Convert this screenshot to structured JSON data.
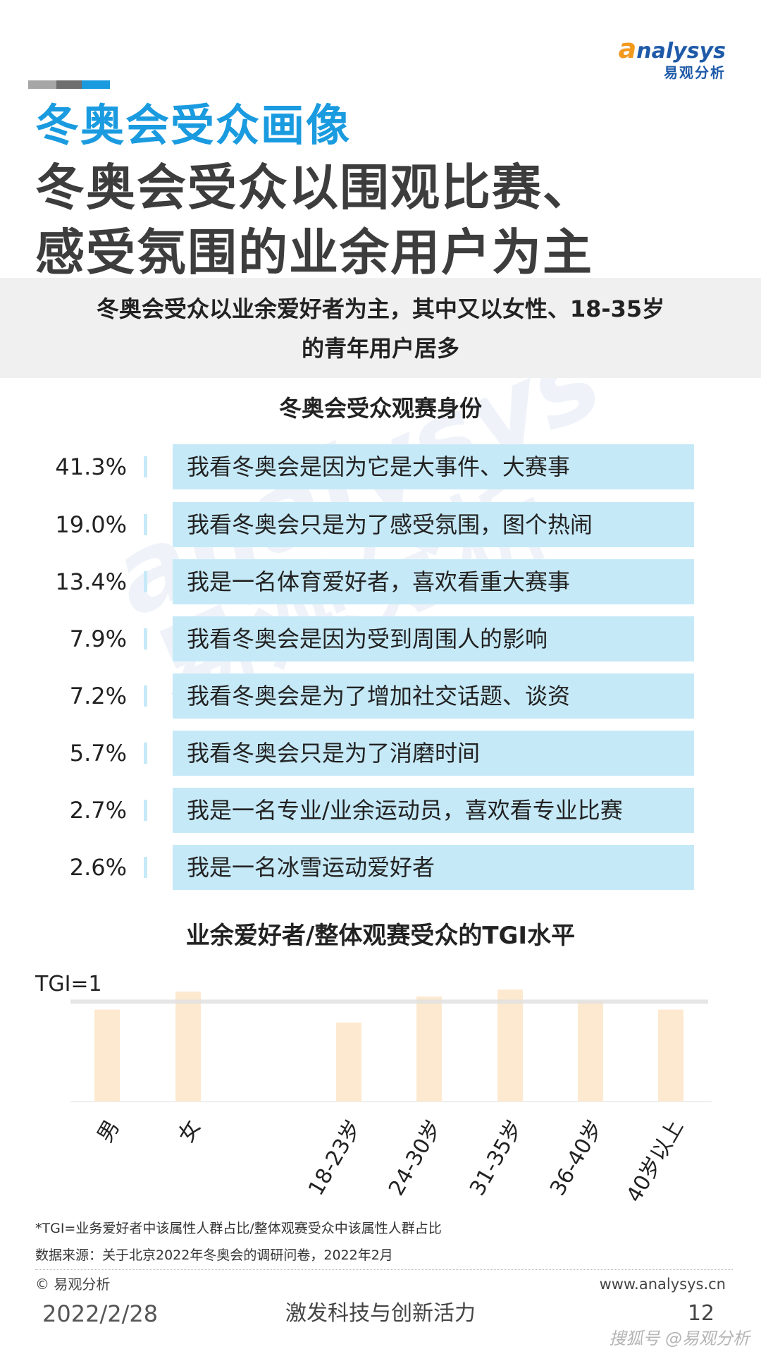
{
  "brand": {
    "logo_en": "analysys",
    "logo_cn": "易观分析"
  },
  "section_title": "冬奥会受众画像",
  "headline": {
    "line1": "冬奥会受众以围观比赛、",
    "line2": "感受氛围的业余用户为主"
  },
  "subtitle": {
    "line1": "冬奥会受众以业余爱好者为主，其中又以女性、18-35岁",
    "line2": "的青年用户居多"
  },
  "colors": {
    "accent": "#1a9be0",
    "bar_light_blue": "#c6e9f7",
    "tgi_bar": "#fde9cf",
    "header_gray": "#3d3d3d"
  },
  "chart_data": [
    {
      "type": "bar",
      "title": "冬奥会受众观赛身份",
      "categories": [
        "我看冬奥会是因为它是大事件、大赛事",
        "我看冬奥会只是为了感受氛围，图个热闹",
        "我是一名体育爱好者，喜欢看重大赛事",
        "我看冬奥会是因为受到周围人的影响",
        "我看冬奥会是为了增加社交话题、谈资",
        "我看冬奥会只是为了消磨时间",
        "我是一名专业/业余运动员，喜欢看专业比赛",
        "我是一名冰雪运动爱好者"
      ],
      "values": [
        41.3,
        19.0,
        13.4,
        7.9,
        7.2,
        5.7,
        2.7,
        2.6
      ],
      "value_labels": [
        "41.3%",
        "19.0%",
        "13.4%",
        "7.9%",
        "7.2%",
        "5.7%",
        "2.7%",
        "2.6%"
      ]
    },
    {
      "type": "bar",
      "title": "业余爱好者/整体观赛受众的TGI水平",
      "reference_label": "TGI=1",
      "reference_value": 1,
      "categories": [
        "男",
        "女",
        "18-23岁",
        "24-30岁",
        "31-35岁",
        "36-40岁",
        "40岁以上"
      ],
      "values": [
        0.92,
        1.1,
        0.79,
        1.05,
        1.12,
        1.01,
        0.92
      ],
      "ylim": [
        0,
        1.2
      ]
    }
  ],
  "footer": {
    "note": "*TGI=业务爱好者中该属性人群占比/整体观赛受众中该属性人群占比",
    "source": "数据来源：关于北京2022年冬奥会的调研问卷，2022年2月",
    "copyright": "© 易观分析",
    "website": "www.analysys.cn",
    "date": "2022/2/28",
    "slogan": "激发科技与创新活力",
    "page": "12",
    "watermark_credit": "搜狐号 @易观分析"
  }
}
